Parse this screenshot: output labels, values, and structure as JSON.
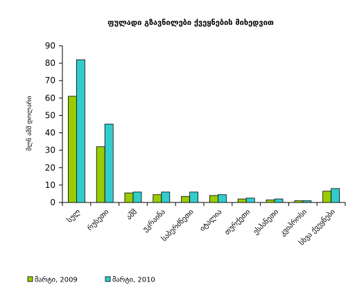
{
  "chart_data": {
    "type": "bar",
    "title": "ფულადი გზავნილები ქვეყნების მიხედვით",
    "ylabel": "მლნ აშშ დოლარი",
    "xlabel": "",
    "ylim": [
      0,
      90
    ],
    "yticks": [
      0,
      10,
      20,
      30,
      40,
      50,
      60,
      70,
      80,
      90
    ],
    "grid": false,
    "legend_position": "bottom-left",
    "categories": [
      "სულ",
      "რუსეთი",
      "აშშ",
      "უკრაინა",
      "საბერძნეთი",
      "იტალია",
      "თურქეთი",
      "ესპანეთი",
      "კვიპროსი",
      "სხვა ქვეყნები"
    ],
    "series": [
      {
        "name": "მარტი, 2009",
        "color": "#99cc00",
        "values": [
          61,
          32,
          5.5,
          4.5,
          3.5,
          4,
          2,
          1.5,
          1,
          6.5
        ]
      },
      {
        "name": "მარტი, 2010",
        "color": "#33cccc",
        "values": [
          82,
          45,
          6,
          6,
          6,
          4.5,
          2.5,
          2,
          1,
          8
        ]
      }
    ]
  }
}
